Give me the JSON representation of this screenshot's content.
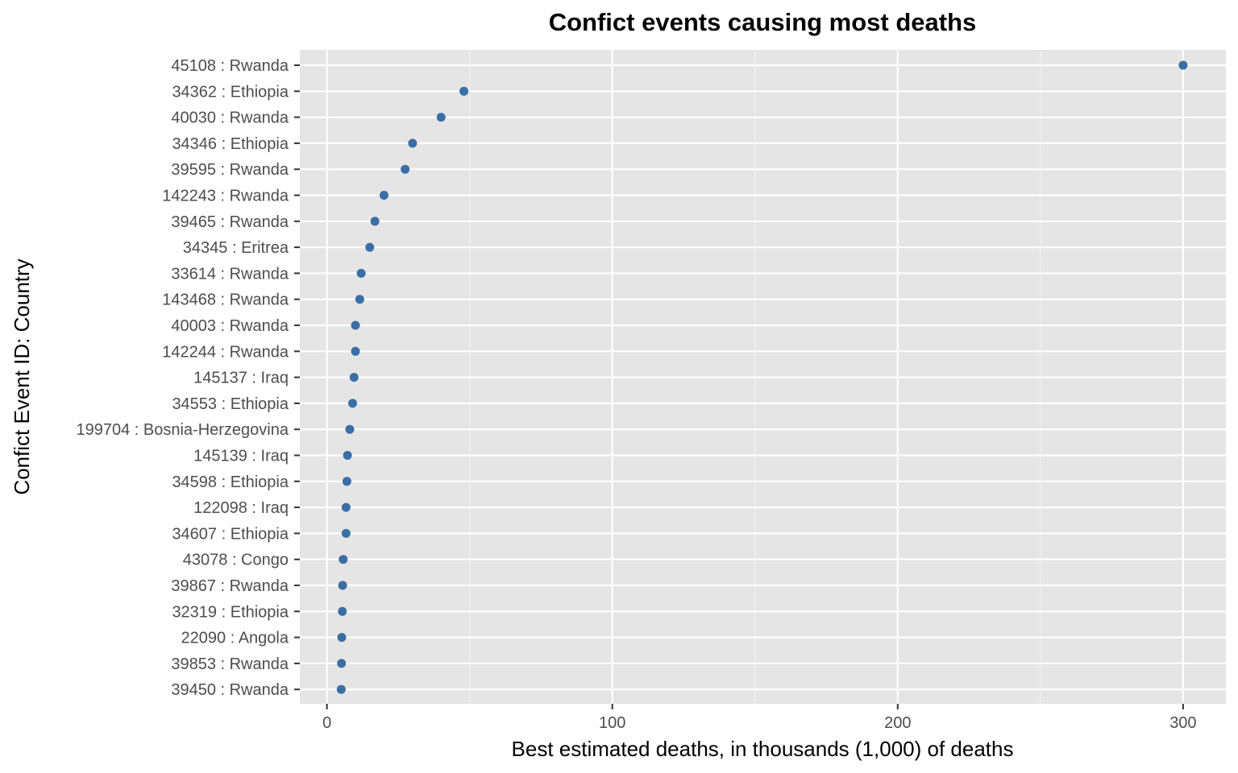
{
  "colors": {
    "panel_background": "#e5e5e5",
    "grid_major": "#ffffff",
    "grid_minor": "#f2f2f2",
    "point": "#3a6ea5",
    "tick": "#333333",
    "tick_label": "#4d4d4d"
  },
  "chart_data": {
    "type": "scatter",
    "title": "Confict events causing most deaths",
    "xlabel": "Best estimated deaths, in thousands (1,000) of deaths",
    "ylabel": "Confict Event ID: Country",
    "xlim": [
      -9.5,
      315
    ],
    "x_ticks": [
      0,
      100,
      200,
      300
    ],
    "x_minor_ticks": [
      50,
      150,
      250
    ],
    "grid": true,
    "legend": "none",
    "categories": [
      "45108 : Rwanda",
      "34362 : Ethiopia",
      "40030 : Rwanda",
      "34346 : Ethiopia",
      "39595 : Rwanda",
      "142243 : Rwanda",
      "39465 : Rwanda",
      "34345 : Eritrea",
      "33614 : Rwanda",
      "143468 : Rwanda",
      "40003 : Rwanda",
      "142244 : Rwanda",
      "145137 : Iraq",
      "34553 : Ethiopia",
      "199704 : Bosnia-Herzegovina",
      "145139 : Iraq",
      "34598 : Ethiopia",
      "122098 : Iraq",
      "34607 : Ethiopia",
      "43078 : Congo",
      "39867 : Rwanda",
      "32319 : Ethiopia",
      "22090 : Angola",
      "39853 : Rwanda",
      "39450 : Rwanda"
    ],
    "values": [
      300,
      48,
      40,
      30,
      27.4,
      20,
      16.8,
      15,
      12,
      11.5,
      10,
      10,
      9.5,
      9,
      8,
      7.2,
      7,
      6.7,
      6.7,
      5.7,
      5.5,
      5.4,
      5.2,
      5.1,
      5
    ]
  }
}
